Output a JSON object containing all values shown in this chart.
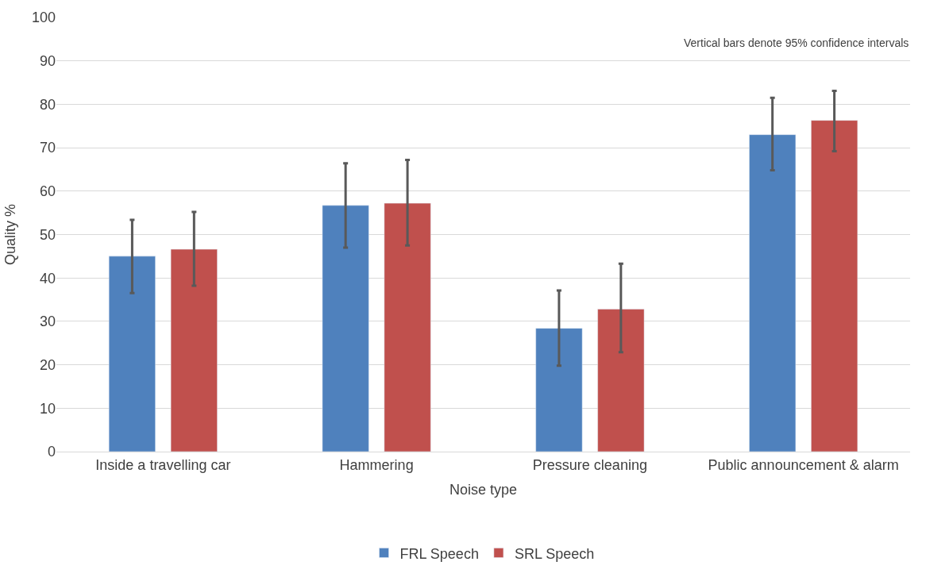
{
  "chart_data": {
    "type": "bar",
    "xlabel": "Noise type",
    "ylabel": "Quality %",
    "categories": [
      "Inside a travelling car",
      "Hammering",
      "Pressure cleaning",
      "Public announcement & alarm"
    ],
    "series": [
      {
        "name": "FRL Speech",
        "color": "#4f81bd",
        "values": [
          45,
          56.7,
          28.4,
          73
        ],
        "errors": [
          [
            36.5,
            53.4
          ],
          [
            47,
            66.4
          ],
          [
            19.8,
            37.1
          ],
          [
            64.8,
            81.5
          ]
        ]
      },
      {
        "name": "SRL Speech",
        "color": "#c0504d",
        "values": [
          46.6,
          57.2,
          32.8,
          76.3
        ],
        "errors": [
          [
            38.2,
            55.2
          ],
          [
            47.5,
            67.2
          ],
          [
            22.9,
            43.3
          ],
          [
            69.2,
            83.1
          ]
        ]
      }
    ],
    "ylim": [
      0,
      100
    ],
    "yticks": [
      0,
      10,
      20,
      30,
      40,
      50,
      60,
      70,
      80,
      90,
      100
    ],
    "grid": "y",
    "legend": "bottom",
    "annotations": [
      "Vertical bars denote 95% confidence intervals"
    ]
  }
}
